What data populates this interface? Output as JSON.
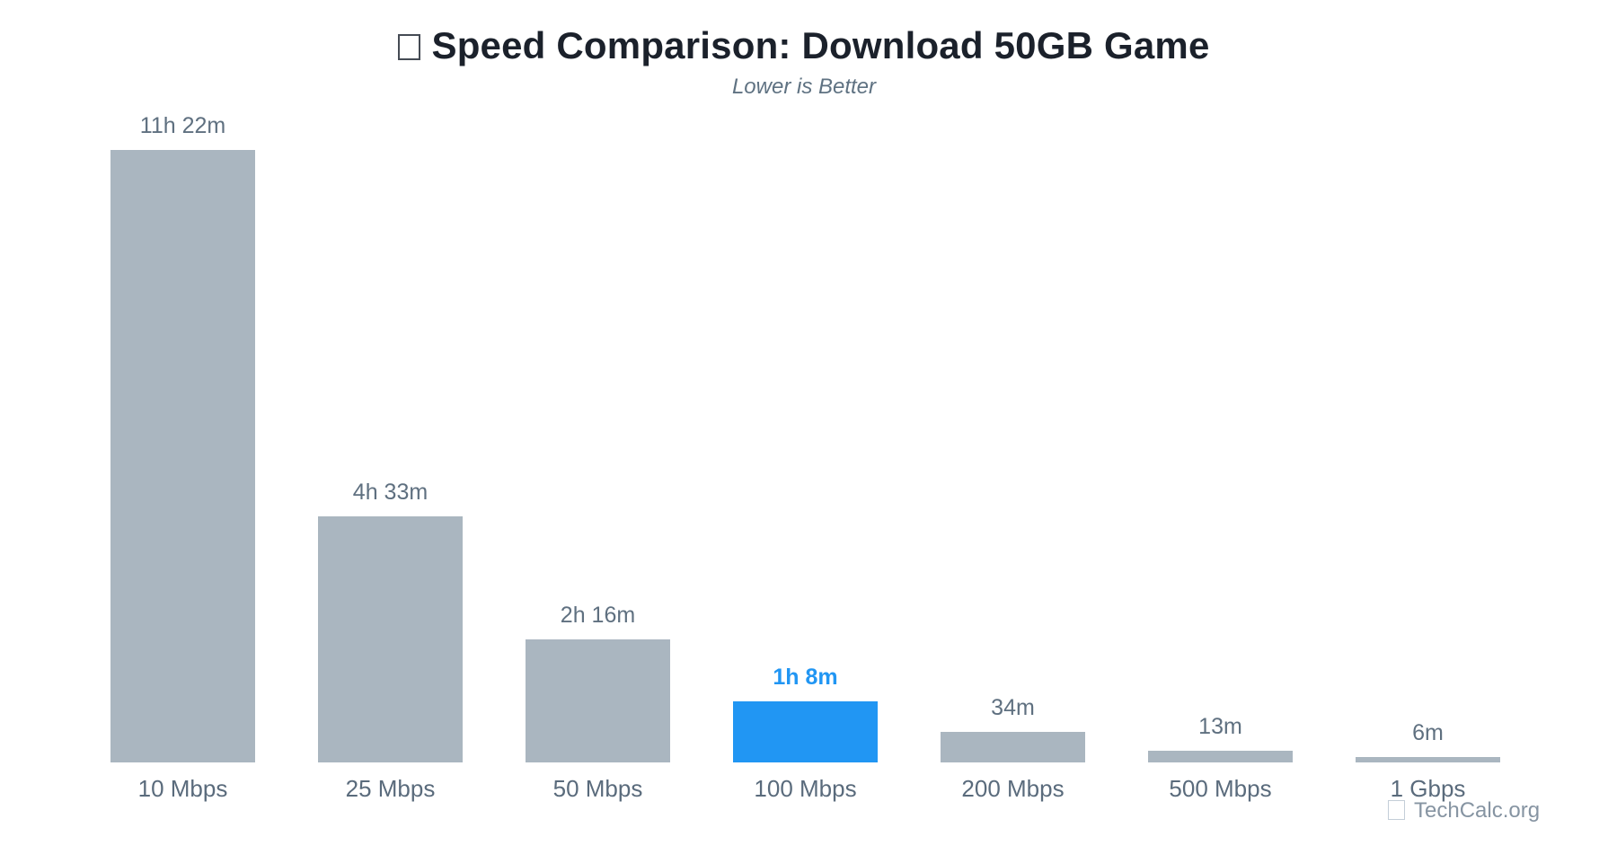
{
  "header": {
    "title": "Speed Comparison: Download 50GB Game",
    "subtitle": "Lower is Better"
  },
  "chart_data": {
    "type": "bar",
    "title": "Speed Comparison: Download 50GB Game",
    "subtitle": "Lower is Better",
    "orientation": "vertical",
    "unit": "minutes",
    "categories": [
      "10 Mbps",
      "25 Mbps",
      "50 Mbps",
      "100 Mbps",
      "200 Mbps",
      "500 Mbps",
      "1 Gbps"
    ],
    "values": [
      682,
      273,
      136,
      68,
      34,
      13,
      6
    ],
    "value_labels": [
      "11h 22m",
      "4h 33m",
      "2h 16m",
      "1h 8m",
      "34m",
      "13m",
      "6m"
    ],
    "highlighted_index": 3,
    "highlighted_category": "100 Mbps",
    "bar_color": "#aab6c0",
    "highlight_color": "#2196f3",
    "axis_visible": false,
    "grid": false,
    "legend": false,
    "ylim_minutes": [
      0,
      682
    ]
  },
  "watermark": {
    "text": "TechCalc.org"
  },
  "colors": {
    "background": "#ffffff",
    "title": "#1b212b",
    "subtitle": "#5f7282",
    "value_label": "#5f7080",
    "axis_label": "#5a6b7c",
    "watermark": "#8694a2"
  }
}
